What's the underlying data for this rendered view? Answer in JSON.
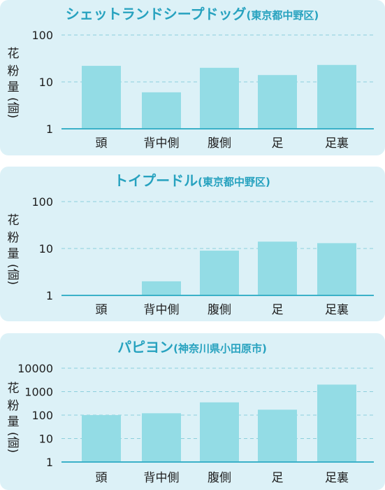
{
  "theme": {
    "title_color": "#27a2bf",
    "bar_color": "#93dce5",
    "axis_color": "#3bb1c8",
    "grid_color": "#8ccfdc",
    "text_color": "#1f1f1f",
    "panel_bg": "#dcf1f7"
  },
  "chart_data": [
    {
      "type": "bar",
      "title": "シェットランドシープドッグ",
      "subtitle": "(東京都中野区)",
      "ylabel": "花粉量(個)",
      "yscale": "log",
      "ylim": [
        1,
        100
      ],
      "yticks": [
        "1",
        "10",
        "100"
      ],
      "grid": true,
      "categories": [
        "頭",
        "背中側",
        "腹側",
        "足",
        "足裏"
      ],
      "values": [
        22,
        6,
        20,
        14,
        23
      ]
    },
    {
      "type": "bar",
      "title": "トイプードル",
      "subtitle": "(東京都中野区)",
      "ylabel": "花粉量(個)",
      "yscale": "log",
      "ylim": [
        1,
        100
      ],
      "yticks": [
        "1",
        "10",
        "100"
      ],
      "grid": true,
      "categories": [
        "頭",
        "背中側",
        "腹側",
        "足",
        "足裏"
      ],
      "values": [
        0,
        2,
        9,
        14,
        13
      ]
    },
    {
      "type": "bar",
      "title": "パピヨン",
      "subtitle": "(神奈川県小田原市)",
      "ylabel": "花粉量(個)",
      "yscale": "log",
      "ylim": [
        1,
        10000
      ],
      "yticks": [
        "1",
        "10",
        "100",
        "1000",
        "10000"
      ],
      "grid": true,
      "categories": [
        "頭",
        "背中側",
        "腹側",
        "足",
        "足裏"
      ],
      "values": [
        100,
        120,
        350,
        170,
        2000
      ]
    }
  ]
}
